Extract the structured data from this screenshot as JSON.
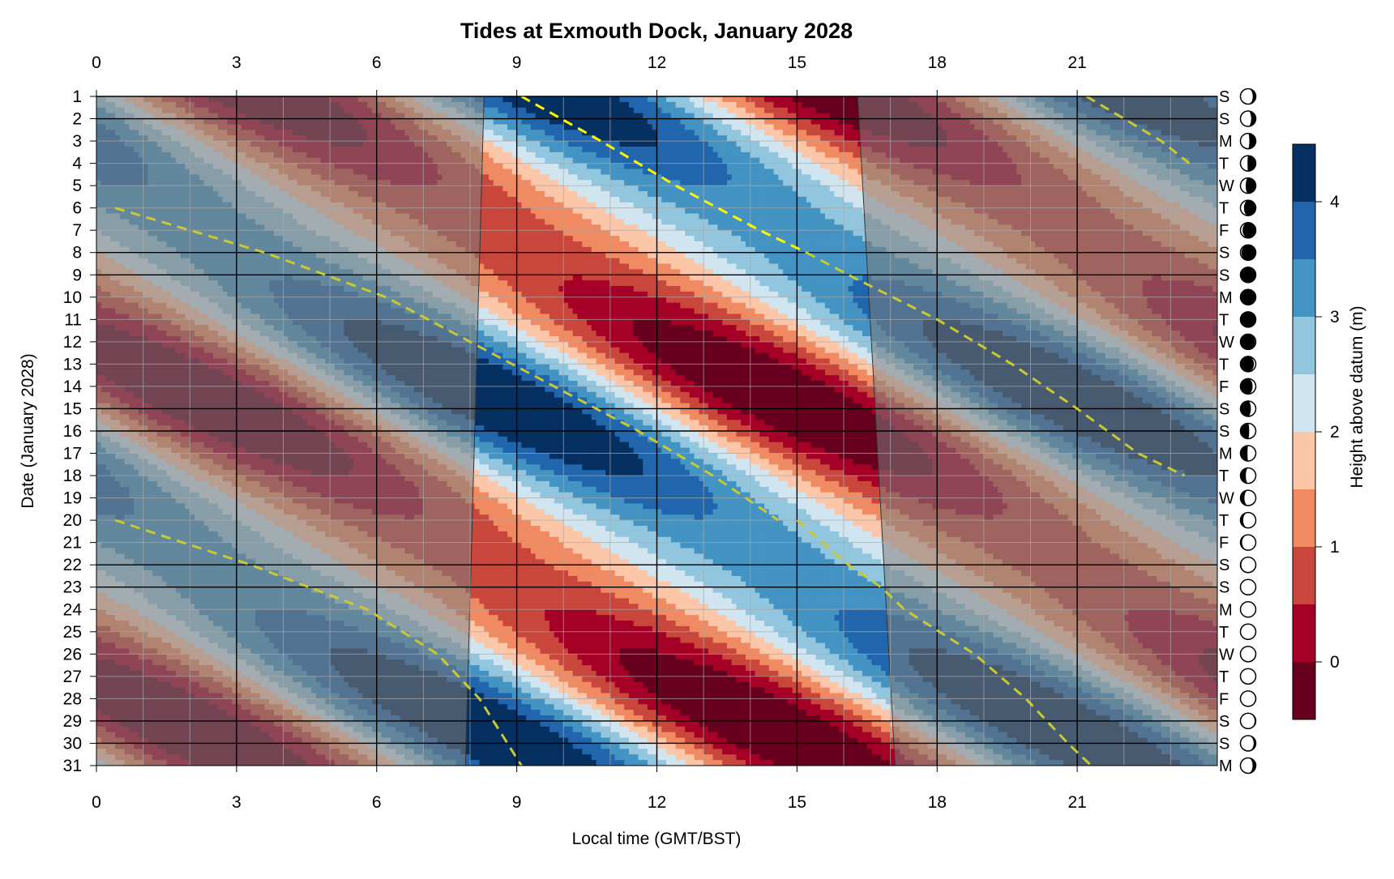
{
  "chart_data": {
    "type": "heatmap",
    "title": "Tides at Exmouth Dock, January 2028",
    "xlabel": "Local time (GMT/BST)",
    "ylabel": "Date (January 2028)",
    "colorbar_label": "Height above datum (m)",
    "x_ticks": [
      "0",
      "3",
      "6",
      "9",
      "12",
      "15",
      "18",
      "21"
    ],
    "x_tick_values": [
      0,
      3,
      6,
      9,
      12,
      15,
      18,
      21
    ],
    "xlim": [
      0,
      24
    ],
    "y_ticks": [
      "1",
      "2",
      "3",
      "4",
      "5",
      "6",
      "7",
      "8",
      "9",
      "10",
      "11",
      "12",
      "13",
      "14",
      "15",
      "16",
      "17",
      "18",
      "19",
      "20",
      "21",
      "22",
      "23",
      "24",
      "25",
      "26",
      "27",
      "28",
      "29",
      "30",
      "31"
    ],
    "ylim": [
      1,
      31
    ],
    "weekdays": [
      "S",
      "S",
      "M",
      "T",
      "W",
      "T",
      "F",
      "S",
      "S",
      "M",
      "T",
      "W",
      "T",
      "F",
      "S",
      "S",
      "M",
      "T",
      "W",
      "T",
      "F",
      "S",
      "S",
      "M",
      "T",
      "W",
      "T",
      "F",
      "S",
      "S",
      "M"
    ],
    "moon_illumination": [
      0.8,
      0.7,
      0.58,
      0.46,
      0.34,
      0.23,
      0.14,
      0.07,
      0.02,
      0.0,
      0.01,
      0.05,
      0.12,
      0.21,
      0.32,
      0.43,
      0.54,
      0.65,
      0.74,
      0.82,
      0.89,
      0.94,
      0.97,
      0.99,
      1.0,
      1.0,
      0.99,
      0.96,
      0.92,
      0.86,
      0.79
    ],
    "moon_waxing": [
      false,
      false,
      false,
      false,
      false,
      false,
      false,
      false,
      false,
      false,
      true,
      true,
      true,
      true,
      true,
      true,
      true,
      true,
      true,
      true,
      true,
      true,
      true,
      true,
      true,
      false,
      false,
      false,
      false,
      false,
      false
    ],
    "weekend_dates": [
      1,
      2,
      8,
      9,
      15,
      16,
      22,
      23,
      29,
      30
    ],
    "daylight": {
      "sunrise": {
        "dates": [
          1,
          31
        ],
        "hours": [
          8.3,
          7.9
        ]
      },
      "sunset": {
        "dates": [
          1,
          31
        ],
        "hours": [
          16.3,
          17.1
        ]
      }
    },
    "high_water_tracks": [
      {
        "dates": [
          6,
          8,
          10,
          12,
          14,
          16,
          18,
          20
        ],
        "hours": [
          0.4,
          3.6,
          6.2,
          8.0,
          9.8,
          11.6,
          13.2,
          14.6
        ]
      },
      {
        "dates": [
          1,
          3,
          5,
          7,
          8
        ],
        "hours": [
          9.1,
          10.8,
          12.4,
          14.2,
          15.2
        ]
      },
      {
        "dates": [
          8,
          9,
          11,
          13,
          15,
          17,
          18
        ],
        "hours": [
          15.2,
          16.1,
          18.0,
          19.6,
          21.0,
          22.3,
          23.3
        ]
      },
      {
        "dates": [
          1,
          2,
          3,
          4
        ],
        "hours": [
          21.2,
          22.0,
          22.8,
          23.4
        ]
      },
      {
        "dates": [
          20,
          22,
          24,
          26,
          28,
          30,
          31
        ],
        "hours": [
          0.4,
          3.3,
          5.8,
          7.3,
          8.2,
          8.8,
          9.1
        ]
      },
      {
        "dates": [
          20,
          22,
          23,
          24,
          26,
          28,
          30,
          31
        ],
        "hours": [
          15.0,
          16.1,
          16.8,
          17.3,
          18.8,
          19.9,
          20.8,
          21.3
        ]
      }
    ],
    "colorbar_ticks": [
      "0",
      "1",
      "2",
      "3",
      "4"
    ],
    "colorbar_tick_values": [
      0,
      1,
      2,
      3,
      4
    ],
    "levels": [
      -0.5,
      0,
      0.5,
      1,
      1.5,
      2,
      2.5,
      3,
      3.5,
      4,
      4.5
    ],
    "colors": [
      "#67001f",
      "#a50026",
      "#c8463b",
      "#ef8a62",
      "#fcc6a9",
      "#d1e5f0",
      "#92c5de",
      "#4393c3",
      "#2166ac",
      "#053061"
    ],
    "night_shade": "rgba(125,125,125,0.55)",
    "track_color": "#ffff00",
    "track_color_night": "#c9c932"
  }
}
